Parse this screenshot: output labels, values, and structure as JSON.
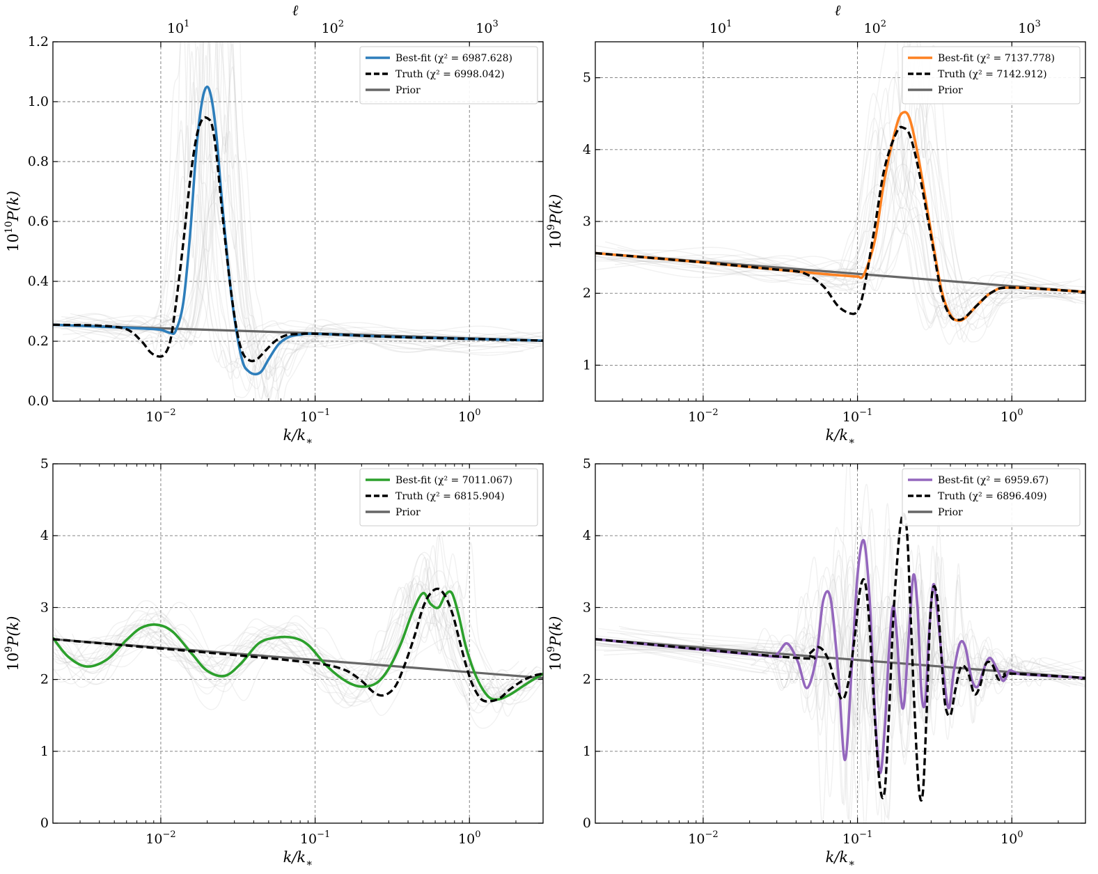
{
  "colors": {
    "blue": "#2e7ebb",
    "orange": "#fd8121",
    "green": "#2ca02c",
    "purple": "#9467bd",
    "truth": "#000000",
    "prior": "#666666",
    "ghost": "#bdbdbd"
  },
  "chart_data": [
    {
      "type": "line",
      "panel": "top-left",
      "xlabel": "k/k*",
      "ylabel": "10^10 P(k)",
      "ylabel_parts": {
        "base": "10",
        "exp": "10",
        "rest": "P(k)"
      },
      "top_axis_label": "ℓ",
      "xscale": "log",
      "xlim": [
        0.002,
        3.0
      ],
      "ylim": [
        0,
        1.2
      ],
      "yticks": [
        0.0,
        0.2,
        0.4,
        0.6,
        0.8,
        1.0,
        1.2
      ],
      "ytick_labels": [
        "0.0",
        "0.2",
        "0.4",
        "0.6",
        "0.8",
        "1.0",
        "1.2"
      ],
      "xticks": [
        {
          "value": 0.01,
          "exp": "−2"
        },
        {
          "value": 0.1,
          "exp": "−1"
        },
        {
          "value": 1,
          "exp": "0"
        }
      ],
      "top_ticks": [
        {
          "value": 0.013,
          "exp": "1"
        },
        {
          "value": 0.13,
          "exp": "2"
        },
        {
          "value": 1.3,
          "exp": "3"
        }
      ],
      "legend_loc": "upper right",
      "legend": [
        {
          "label": "Best-fit (χ² = 6987.628)",
          "name": "Best-fit",
          "chi2": "6987.628",
          "style": "solid",
          "color_key": "blue"
        },
        {
          "label": "Truth (χ² = 6998.042)",
          "name": "Truth",
          "chi2": "6998.042",
          "style": "dashed",
          "color_key": "truth"
        },
        {
          "label": "Prior",
          "name": "Prior",
          "chi2": "",
          "style": "solid",
          "color_key": "prior"
        }
      ],
      "prior": {
        "x": [
          0.002,
          3.0
        ],
        "y": [
          0.255,
          0.202
        ]
      },
      "series": [
        {
          "name": "Best-fit",
          "color_key": "blue",
          "x": [
            0.002,
            0.005,
            0.008,
            0.01,
            0.0115,
            0.0125,
            0.014,
            0.0155,
            0.017,
            0.0185,
            0.02,
            0.0215,
            0.023,
            0.025,
            0.028,
            0.031,
            0.034,
            0.037,
            0.041,
            0.045,
            0.05,
            0.058,
            0.068,
            0.08,
            0.1,
            0.3,
            1.0,
            3.0
          ],
          "y": [
            0.255,
            0.247,
            0.242,
            0.238,
            0.228,
            0.235,
            0.33,
            0.56,
            0.84,
            1.0,
            1.05,
            1.0,
            0.88,
            0.66,
            0.4,
            0.23,
            0.13,
            0.1,
            0.09,
            0.1,
            0.14,
            0.19,
            0.215,
            0.222,
            0.225,
            0.215,
            0.208,
            0.202
          ]
        },
        {
          "name": "Truth",
          "color_key": "truth",
          "x": [
            0.002,
            0.004,
            0.006,
            0.0075,
            0.0085,
            0.0095,
            0.0105,
            0.0115,
            0.0125,
            0.014,
            0.0155,
            0.017,
            0.0185,
            0.02,
            0.0215,
            0.023,
            0.025,
            0.028,
            0.031,
            0.034,
            0.038,
            0.042,
            0.047,
            0.055,
            0.065,
            0.08,
            0.1,
            0.3,
            1.0,
            3.0
          ],
          "y": [
            0.255,
            0.252,
            0.24,
            0.2,
            0.165,
            0.15,
            0.155,
            0.2,
            0.32,
            0.53,
            0.74,
            0.88,
            0.94,
            0.945,
            0.92,
            0.82,
            0.63,
            0.4,
            0.24,
            0.16,
            0.135,
            0.14,
            0.165,
            0.2,
            0.22,
            0.224,
            0.225,
            0.215,
            0.208,
            0.202
          ]
        }
      ]
    },
    {
      "type": "line",
      "panel": "top-right",
      "xlabel": "k/k*",
      "ylabel": "10^9 P(k)",
      "ylabel_parts": {
        "base": "10",
        "exp": "9",
        "rest": "P(k)"
      },
      "top_axis_label": "ℓ",
      "xscale": "log",
      "xlim": [
        0.002,
        3.0
      ],
      "ylim": [
        0.5,
        5.5
      ],
      "yticks": [
        1,
        2,
        3,
        4,
        5
      ],
      "ytick_labels": [
        "1",
        "2",
        "3",
        "4",
        "5"
      ],
      "xticks": [
        {
          "value": 0.01,
          "exp": "−2"
        },
        {
          "value": 0.1,
          "exp": "−1"
        },
        {
          "value": 1,
          "exp": "0"
        }
      ],
      "top_ticks": [
        {
          "value": 0.013,
          "exp": "1"
        },
        {
          "value": 0.13,
          "exp": "2"
        },
        {
          "value": 1.3,
          "exp": "3"
        }
      ],
      "legend_loc": "upper right",
      "legend": [
        {
          "label": "Best-fit (χ² = 7137.778)",
          "name": "Best-fit",
          "chi2": "7137.778",
          "style": "solid",
          "color_key": "orange"
        },
        {
          "label": "Truth (χ² = 7142.912)",
          "name": "Truth",
          "chi2": "7142.912",
          "style": "dashed",
          "color_key": "truth"
        },
        {
          "label": "Prior",
          "name": "Prior",
          "chi2": "",
          "style": "solid",
          "color_key": "prior"
        }
      ],
      "prior": {
        "x": [
          0.002,
          3.0
        ],
        "y": [
          2.56,
          2.02
        ]
      },
      "series": [
        {
          "name": "Best-fit",
          "color_key": "orange",
          "x": [
            0.002,
            0.01,
            0.03,
            0.06,
            0.09,
            0.1,
            0.11,
            0.13,
            0.15,
            0.18,
            0.2,
            0.22,
            0.25,
            0.3,
            0.35,
            0.4,
            0.45,
            0.5,
            0.6,
            0.75,
            1.0,
            3.0
          ],
          "y": [
            2.56,
            2.43,
            2.33,
            2.27,
            2.24,
            2.235,
            2.26,
            2.75,
            3.6,
            4.35,
            4.52,
            4.4,
            3.85,
            2.85,
            2.05,
            1.7,
            1.62,
            1.66,
            1.84,
            2.02,
            2.08,
            2.02
          ]
        },
        {
          "name": "Truth",
          "color_key": "truth",
          "x": [
            0.002,
            0.01,
            0.03,
            0.045,
            0.06,
            0.075,
            0.09,
            0.1,
            0.11,
            0.13,
            0.15,
            0.18,
            0.2,
            0.22,
            0.25,
            0.3,
            0.35,
            0.4,
            0.45,
            0.5,
            0.6,
            0.75,
            1.0,
            3.0
          ],
          "y": [
            2.56,
            2.43,
            2.33,
            2.28,
            2.1,
            1.82,
            1.72,
            1.76,
            2.05,
            2.95,
            3.75,
            4.25,
            4.3,
            4.18,
            3.7,
            2.78,
            2.0,
            1.68,
            1.63,
            1.67,
            1.84,
            2.02,
            2.08,
            2.02
          ]
        }
      ]
    },
    {
      "type": "line",
      "panel": "bottom-left",
      "xlabel": "k/k*",
      "ylabel": "10^9 P(k)",
      "ylabel_parts": {
        "base": "10",
        "exp": "9",
        "rest": "P(k)"
      },
      "top_axis_label": "",
      "xscale": "log",
      "xlim": [
        0.002,
        3.0
      ],
      "ylim": [
        0,
        5
      ],
      "yticks": [
        0,
        1,
        2,
        3,
        4,
        5
      ],
      "ytick_labels": [
        "0",
        "1",
        "2",
        "3",
        "4",
        "5"
      ],
      "xticks": [
        {
          "value": 0.01,
          "exp": "−2"
        },
        {
          "value": 0.1,
          "exp": "−1"
        },
        {
          "value": 1,
          "exp": "0"
        }
      ],
      "top_ticks": [],
      "legend_loc": "upper right",
      "legend": [
        {
          "label": "Best-fit (χ² = 7011.067)",
          "name": "Best-fit",
          "chi2": "7011.067",
          "style": "solid",
          "color_key": "green"
        },
        {
          "label": "Truth (χ² = 6815.904)",
          "name": "Truth",
          "chi2": "6815.904",
          "style": "dashed",
          "color_key": "truth"
        },
        {
          "label": "Prior",
          "name": "Prior",
          "chi2": "",
          "style": "solid",
          "color_key": "prior"
        }
      ],
      "prior": {
        "x": [
          0.002,
          3.0
        ],
        "y": [
          2.56,
          2.02
        ]
      },
      "series": [
        {
          "name": "Best-fit",
          "color_key": "green",
          "x": [
            0.002,
            0.0025,
            0.0033,
            0.0045,
            0.006,
            0.0075,
            0.0095,
            0.012,
            0.016,
            0.02,
            0.026,
            0.033,
            0.043,
            0.055,
            0.072,
            0.09,
            0.12,
            0.16,
            0.2,
            0.25,
            0.3,
            0.36,
            0.43,
            0.5,
            0.56,
            0.63,
            0.7,
            0.77,
            0.85,
            0.95,
            1.1,
            1.3,
            1.5,
            1.8,
            2.2,
            2.6,
            3.0
          ],
          "y": [
            2.58,
            2.32,
            2.18,
            2.28,
            2.55,
            2.72,
            2.76,
            2.66,
            2.35,
            2.12,
            2.05,
            2.22,
            2.5,
            2.58,
            2.58,
            2.48,
            2.18,
            1.97,
            1.9,
            1.95,
            2.15,
            2.5,
            2.95,
            3.2,
            3.05,
            3.0,
            3.18,
            3.2,
            2.9,
            2.45,
            2.05,
            1.78,
            1.72,
            1.78,
            1.9,
            2.0,
            2.08
          ]
        },
        {
          "name": "Truth",
          "color_key": "truth",
          "x": [
            0.002,
            0.03,
            0.08,
            0.12,
            0.16,
            0.2,
            0.24,
            0.28,
            0.33,
            0.38,
            0.44,
            0.5,
            0.56,
            0.63,
            0.7,
            0.78,
            0.86,
            0.95,
            1.05,
            1.2,
            1.4,
            1.6,
            1.8,
            2.2,
            2.6,
            3.0
          ],
          "y": [
            2.56,
            2.34,
            2.25,
            2.2,
            2.12,
            1.98,
            1.82,
            1.78,
            1.9,
            2.2,
            2.6,
            3.0,
            3.2,
            3.26,
            3.15,
            2.9,
            2.55,
            2.2,
            1.92,
            1.72,
            1.7,
            1.75,
            1.85,
            1.98,
            2.05,
            2.08
          ]
        }
      ]
    },
    {
      "type": "line",
      "panel": "bottom-right",
      "xlabel": "k/k*",
      "ylabel": "10^9 P(k)",
      "ylabel_parts": {
        "base": "10",
        "exp": "9",
        "rest": "P(k)"
      },
      "top_axis_label": "",
      "xscale": "log",
      "xlim": [
        0.002,
        3.0
      ],
      "ylim": [
        0,
        5
      ],
      "yticks": [
        0,
        1,
        2,
        3,
        4,
        5
      ],
      "ytick_labels": [
        "0",
        "1",
        "2",
        "3",
        "4",
        "5"
      ],
      "xticks": [
        {
          "value": 0.01,
          "exp": "−2"
        },
        {
          "value": 0.1,
          "exp": "−1"
        },
        {
          "value": 1,
          "exp": "0"
        }
      ],
      "top_ticks": [],
      "legend_loc": "upper right",
      "legend": [
        {
          "label": "Best-fit (χ² = 6959.67)",
          "name": "Best-fit",
          "chi2": "6959.67",
          "style": "solid",
          "color_key": "purple"
        },
        {
          "label": "Truth (χ² = 6896.409)",
          "name": "Truth",
          "chi2": "6896.409",
          "style": "dashed",
          "color_key": "truth"
        },
        {
          "label": "Prior",
          "name": "Prior",
          "chi2": "",
          "style": "solid",
          "color_key": "prior"
        }
      ],
      "prior": {
        "x": [
          0.002,
          3.0
        ],
        "y": [
          2.56,
          2.02
        ]
      },
      "series": [
        {
          "name": "Best-fit",
          "color_key": "purple",
          "x": [
            0.002,
            0.025,
            0.03,
            0.035,
            0.041,
            0.047,
            0.054,
            0.06,
            0.067,
            0.075,
            0.083,
            0.092,
            0.1,
            0.11,
            0.12,
            0.13,
            0.14,
            0.15,
            0.16,
            0.17,
            0.18,
            0.19,
            0.2,
            0.215,
            0.23,
            0.245,
            0.26,
            0.275,
            0.29,
            0.31,
            0.33,
            0.36,
            0.39,
            0.42,
            0.46,
            0.5,
            0.55,
            0.6,
            0.66,
            0.72,
            0.8,
            0.88,
            0.96,
            1.05,
            1.2,
            3.0
          ],
          "y": [
            2.56,
            2.33,
            2.35,
            2.5,
            2.25,
            1.88,
            2.3,
            3.1,
            3.12,
            2.1,
            0.88,
            2.2,
            3.45,
            3.93,
            3.1,
            1.5,
            0.7,
            1.3,
            2.4,
            3.02,
            2.6,
            1.8,
            1.65,
            2.6,
            3.45,
            3.0,
            1.8,
            1.7,
            2.6,
            3.32,
            2.9,
            2.1,
            1.6,
            2.1,
            2.5,
            2.45,
            2.0,
            1.9,
            2.15,
            2.3,
            2.15,
            1.98,
            2.12,
            2.1,
            2.07,
            2.02
          ]
        },
        {
          "name": "Truth",
          "color_key": "truth",
          "x": [
            0.002,
            0.04,
            0.048,
            0.056,
            0.064,
            0.072,
            0.08,
            0.088,
            0.096,
            0.104,
            0.112,
            0.12,
            0.13,
            0.14,
            0.15,
            0.16,
            0.17,
            0.18,
            0.19,
            0.2,
            0.21,
            0.22,
            0.235,
            0.25,
            0.265,
            0.28,
            0.295,
            0.31,
            0.33,
            0.35,
            0.37,
            0.4,
            0.43,
            0.47,
            0.52,
            0.57,
            0.62,
            0.68,
            0.75,
            0.82,
            0.9,
            1.0,
            3.0
          ],
          "y": [
            2.56,
            2.3,
            2.35,
            2.45,
            2.3,
            1.95,
            1.72,
            2.0,
            2.6,
            3.25,
            3.35,
            2.7,
            1.4,
            0.5,
            0.45,
            1.5,
            2.8,
            3.6,
            4.15,
            4.3,
            4.0,
            3.0,
            1.5,
            0.48,
            0.42,
            1.5,
            2.8,
            3.28,
            3.1,
            2.3,
            1.65,
            1.5,
            1.85,
            2.18,
            2.1,
            1.8,
            1.9,
            2.22,
            2.2,
            2.0,
            2.05,
            2.08,
            2.02
          ]
        }
      ]
    }
  ]
}
